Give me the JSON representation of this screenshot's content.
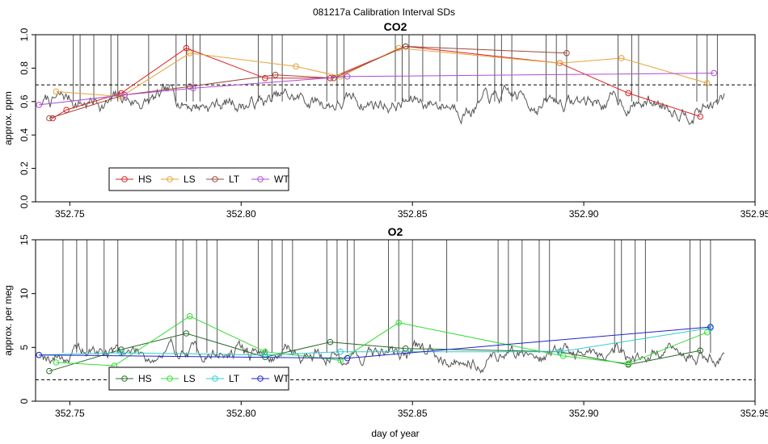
{
  "figure_title": "081217a   Calibration Interval SDs",
  "chart_data": [
    {
      "type": "line",
      "title": "CO2",
      "xlabel": "",
      "ylabel": "approx. ppm",
      "xlim": [
        352.74,
        352.95
      ],
      "ylim": [
        0.0,
        1.0
      ],
      "xticks": [
        "352.75",
        "352.80",
        "352.85",
        "352.90",
        "352.95"
      ],
      "xtick_values": [
        352.75,
        352.8,
        352.85,
        352.9,
        352.95
      ],
      "yticks": [
        "0.0",
        "0.2",
        "0.4",
        "0.6",
        "0.8",
        "1.0"
      ],
      "ytick_values": [
        0.0,
        0.2,
        0.4,
        0.6,
        0.8,
        1.0
      ],
      "reference_line": 0.7,
      "legend_position": "bottom-left",
      "background_trace": {
        "color": "#555555",
        "seed": 7,
        "base": 0.6,
        "amp": 0.1,
        "spikes": [
          352.751,
          352.753,
          352.757,
          352.762,
          352.764,
          352.773,
          352.781,
          352.784,
          352.786,
          352.788,
          352.805,
          352.809,
          352.812,
          352.825,
          352.828,
          352.83,
          352.845,
          352.847,
          352.849,
          352.853,
          352.858,
          352.863,
          352.869,
          352.874,
          352.876,
          352.879,
          352.889,
          352.892,
          352.895,
          352.91,
          352.914,
          352.916,
          352.933,
          352.936,
          352.939
        ]
      },
      "series": [
        {
          "name": "HS",
          "color": "#dd2222",
          "x": [
            352.745,
            352.749,
            352.765,
            352.784,
            352.807,
            352.826,
            352.848,
            352.893,
            352.913,
            352.934
          ],
          "y": [
            0.5,
            0.55,
            0.65,
            0.92,
            0.74,
            0.74,
            0.93,
            0.83,
            0.65,
            0.51
          ]
        },
        {
          "name": "LS",
          "color": "#e8a23a",
          "x": [
            352.746,
            352.765,
            352.785,
            352.816,
            352.829,
            352.846,
            352.893,
            352.911,
            352.936
          ],
          "y": [
            0.66,
            0.63,
            0.89,
            0.81,
            0.75,
            0.92,
            0.83,
            0.86,
            0.71
          ]
        },
        {
          "name": "LT",
          "color": "#9a4a3a",
          "x": [
            352.744,
            352.766,
            352.785,
            352.81,
            352.827,
            352.848,
            352.895
          ],
          "y": [
            0.5,
            0.64,
            0.69,
            0.76,
            0.74,
            0.93,
            0.89
          ]
        },
        {
          "name": "WT",
          "color": "#b04ad8",
          "x": [
            352.741,
            352.766,
            352.786,
            352.831,
            352.938
          ],
          "y": [
            0.58,
            0.64,
            0.68,
            0.75,
            0.77
          ]
        }
      ]
    },
    {
      "type": "line",
      "title": "O2",
      "xlabel": "day of year",
      "ylabel": "approx. per meg",
      "xlim": [
        352.74,
        352.95
      ],
      "ylim": [
        0,
        15
      ],
      "xticks": [
        "352.75",
        "352.80",
        "352.85",
        "352.90",
        "352.95"
      ],
      "xtick_values": [
        352.75,
        352.8,
        352.85,
        352.9,
        352.95
      ],
      "yticks": [
        "0",
        "5",
        "10",
        "15"
      ],
      "ytick_values": [
        0,
        5,
        10,
        15
      ],
      "reference_line": 2,
      "legend_position": "bottom-left",
      "background_trace": {
        "color": "#555555",
        "seed": 19,
        "base": 4.5,
        "amp": 1.5,
        "spikes": [
          352.748,
          352.752,
          352.755,
          352.76,
          352.764,
          352.781,
          352.783,
          352.787,
          352.79,
          352.793,
          352.805,
          352.809,
          352.812,
          352.815,
          352.825,
          352.828,
          352.831,
          352.833,
          352.843,
          352.846,
          352.85,
          352.86,
          352.875,
          352.878,
          352.882,
          352.887,
          352.89,
          352.909,
          352.911,
          352.915,
          352.918,
          352.931,
          352.934,
          352.937
        ]
      },
      "series": [
        {
          "name": "HS",
          "color": "#2a6a2a",
          "x": [
            352.744,
            352.765,
            352.784,
            352.807,
            352.826,
            352.848,
            352.893,
            352.913,
            352.934
          ],
          "y": [
            2.8,
            4.8,
            6.3,
            4.1,
            5.5,
            4.9,
            4.6,
            3.4,
            4.7
          ]
        },
        {
          "name": "LS",
          "color": "#33dd33",
          "x": [
            352.746,
            352.763,
            352.785,
            352.807,
            352.829,
            352.846,
            352.894,
            352.913,
            352.936
          ],
          "y": [
            3.6,
            3.3,
            7.9,
            4.6,
            3.8,
            7.3,
            4.2,
            3.5,
            6.4
          ]
        },
        {
          "name": "LT",
          "color": "#33cccc",
          "x": [
            352.741,
            352.765,
            352.807,
            352.829,
            352.893,
            352.937
          ],
          "y": [
            4.3,
            4.5,
            4.3,
            4.6,
            4.6,
            6.8
          ]
        },
        {
          "name": "WT",
          "color": "#2222cc",
          "x": [
            352.741,
            352.831,
            352.937
          ],
          "y": [
            4.3,
            4.0,
            6.9
          ]
        }
      ]
    }
  ]
}
